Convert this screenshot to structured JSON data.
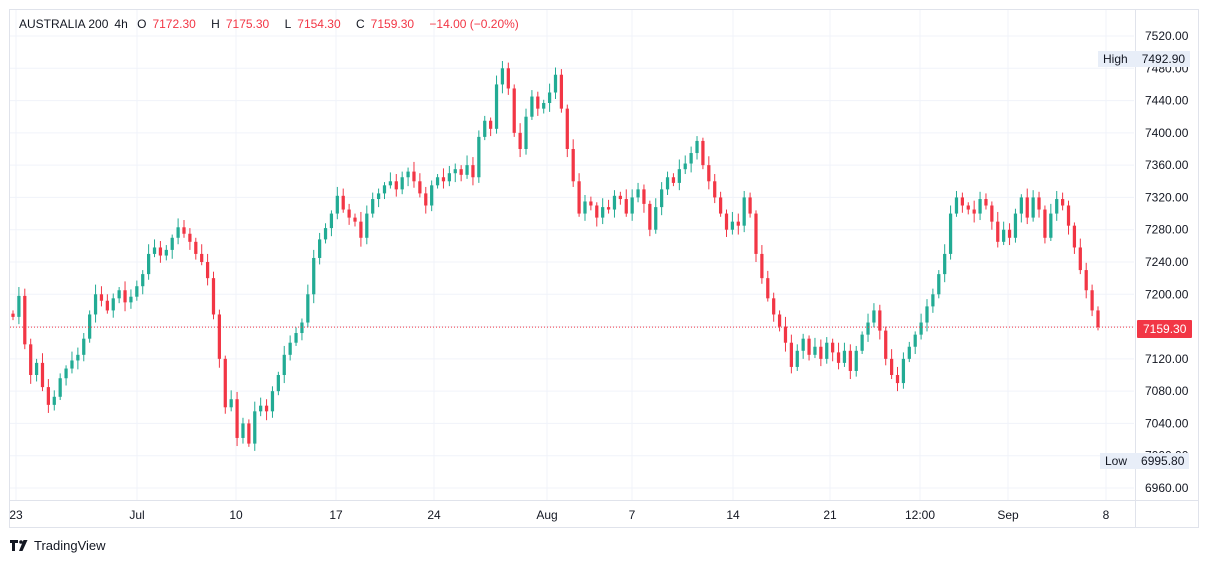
{
  "legend": {
    "symbol": "AUSTRALIA 200",
    "interval": "4h",
    "open_label": "O",
    "open": "7172.30",
    "high_label": "H",
    "high": "7175.30",
    "low_label": "L",
    "low": "7154.30",
    "close_label": "C",
    "close": "7159.30",
    "change": "−14.00 (−0.20%)"
  },
  "tags": {
    "high_label": "High",
    "high_value": "7492.90",
    "low_label": "Low",
    "low_value": "6995.80",
    "last_value": "7159.30"
  },
  "branding": {
    "name": "TradingView"
  },
  "colors": {
    "up": "#22ab94",
    "down": "#f23645",
    "grid": "#f0f3fa",
    "axis_text": "#131722"
  },
  "chart_data": {
    "type": "candlestick",
    "title": "AUSTRALIA 200",
    "interval": "4h",
    "ylim": [
      6940,
      7540
    ],
    "y_ticks": [
      6960,
      7000,
      7040,
      7080,
      7120,
      7160,
      7200,
      7240,
      7280,
      7320,
      7360,
      7400,
      7440,
      7480,
      7520
    ],
    "y_tick_labels": [
      "6960.00",
      "7000.00",
      "7040.00",
      "7080.00",
      "7120.00",
      "7160.00",
      "7200.00",
      "7240.00",
      "7280.00",
      "7320.00",
      "7360.00",
      "7400.00",
      "7440.00",
      "7480.00",
      "7520.00"
    ],
    "x_tick_labels": [
      "23",
      "Jul",
      "10",
      "17",
      "24",
      "Aug",
      "7",
      "14",
      "21",
      "12:00",
      "Sep",
      "8"
    ],
    "high": 7492.9,
    "low": 6995.8,
    "last": 7159.3,
    "closes": [
      7172,
      7198,
      7138,
      7100,
      7115,
      7085,
      7063,
      7073,
      7096,
      7108,
      7118,
      7125,
      7145,
      7175,
      7200,
      7192,
      7180,
      7195,
      7205,
      7190,
      7197,
      7210,
      7225,
      7250,
      7258,
      7248,
      7255,
      7270,
      7283,
      7275,
      7265,
      7250,
      7240,
      7220,
      7175,
      7120,
      7060,
      7070,
      7022,
      7040,
      7015,
      7055,
      7062,
      7055,
      7080,
      7100,
      7125,
      7140,
      7152,
      7165,
      7200,
      7245,
      7268,
      7282,
      7300,
      7322,
      7305,
      7295,
      7290,
      7270,
      7300,
      7318,
      7325,
      7335,
      7340,
      7330,
      7345,
      7352,
      7340,
      7325,
      7310,
      7335,
      7345,
      7340,
      7350,
      7355,
      7348,
      7360,
      7345,
      7395,
      7415,
      7405,
      7460,
      7480,
      7455,
      7400,
      7380,
      7420,
      7445,
      7430,
      7437,
      7450,
      7472,
      7430,
      7380,
      7340,
      7300,
      7315,
      7310,
      7295,
      7308,
      7305,
      7322,
      7318,
      7300,
      7320,
      7330,
      7312,
      7280,
      7308,
      7330,
      7345,
      7338,
      7355,
      7362,
      7375,
      7390,
      7360,
      7340,
      7320,
      7300,
      7280,
      7290,
      7285,
      7320,
      7300,
      7250,
      7220,
      7195,
      7175,
      7160,
      7140,
      7110,
      7130,
      7145,
      7125,
      7135,
      7120,
      7140,
      7128,
      7115,
      7130,
      7105,
      7130,
      7150,
      7165,
      7180,
      7155,
      7120,
      7100,
      7090,
      7120,
      7135,
      7150,
      7165,
      7185,
      7200,
      7225,
      7250,
      7300,
      7320,
      7310,
      7305,
      7300,
      7318,
      7310,
      7290,
      7265,
      7280,
      7270,
      7300,
      7320,
      7295,
      7320,
      7305,
      7270,
      7300,
      7318,
      7310,
      7285,
      7258,
      7230,
      7205,
      7180,
      7159.3
    ]
  }
}
